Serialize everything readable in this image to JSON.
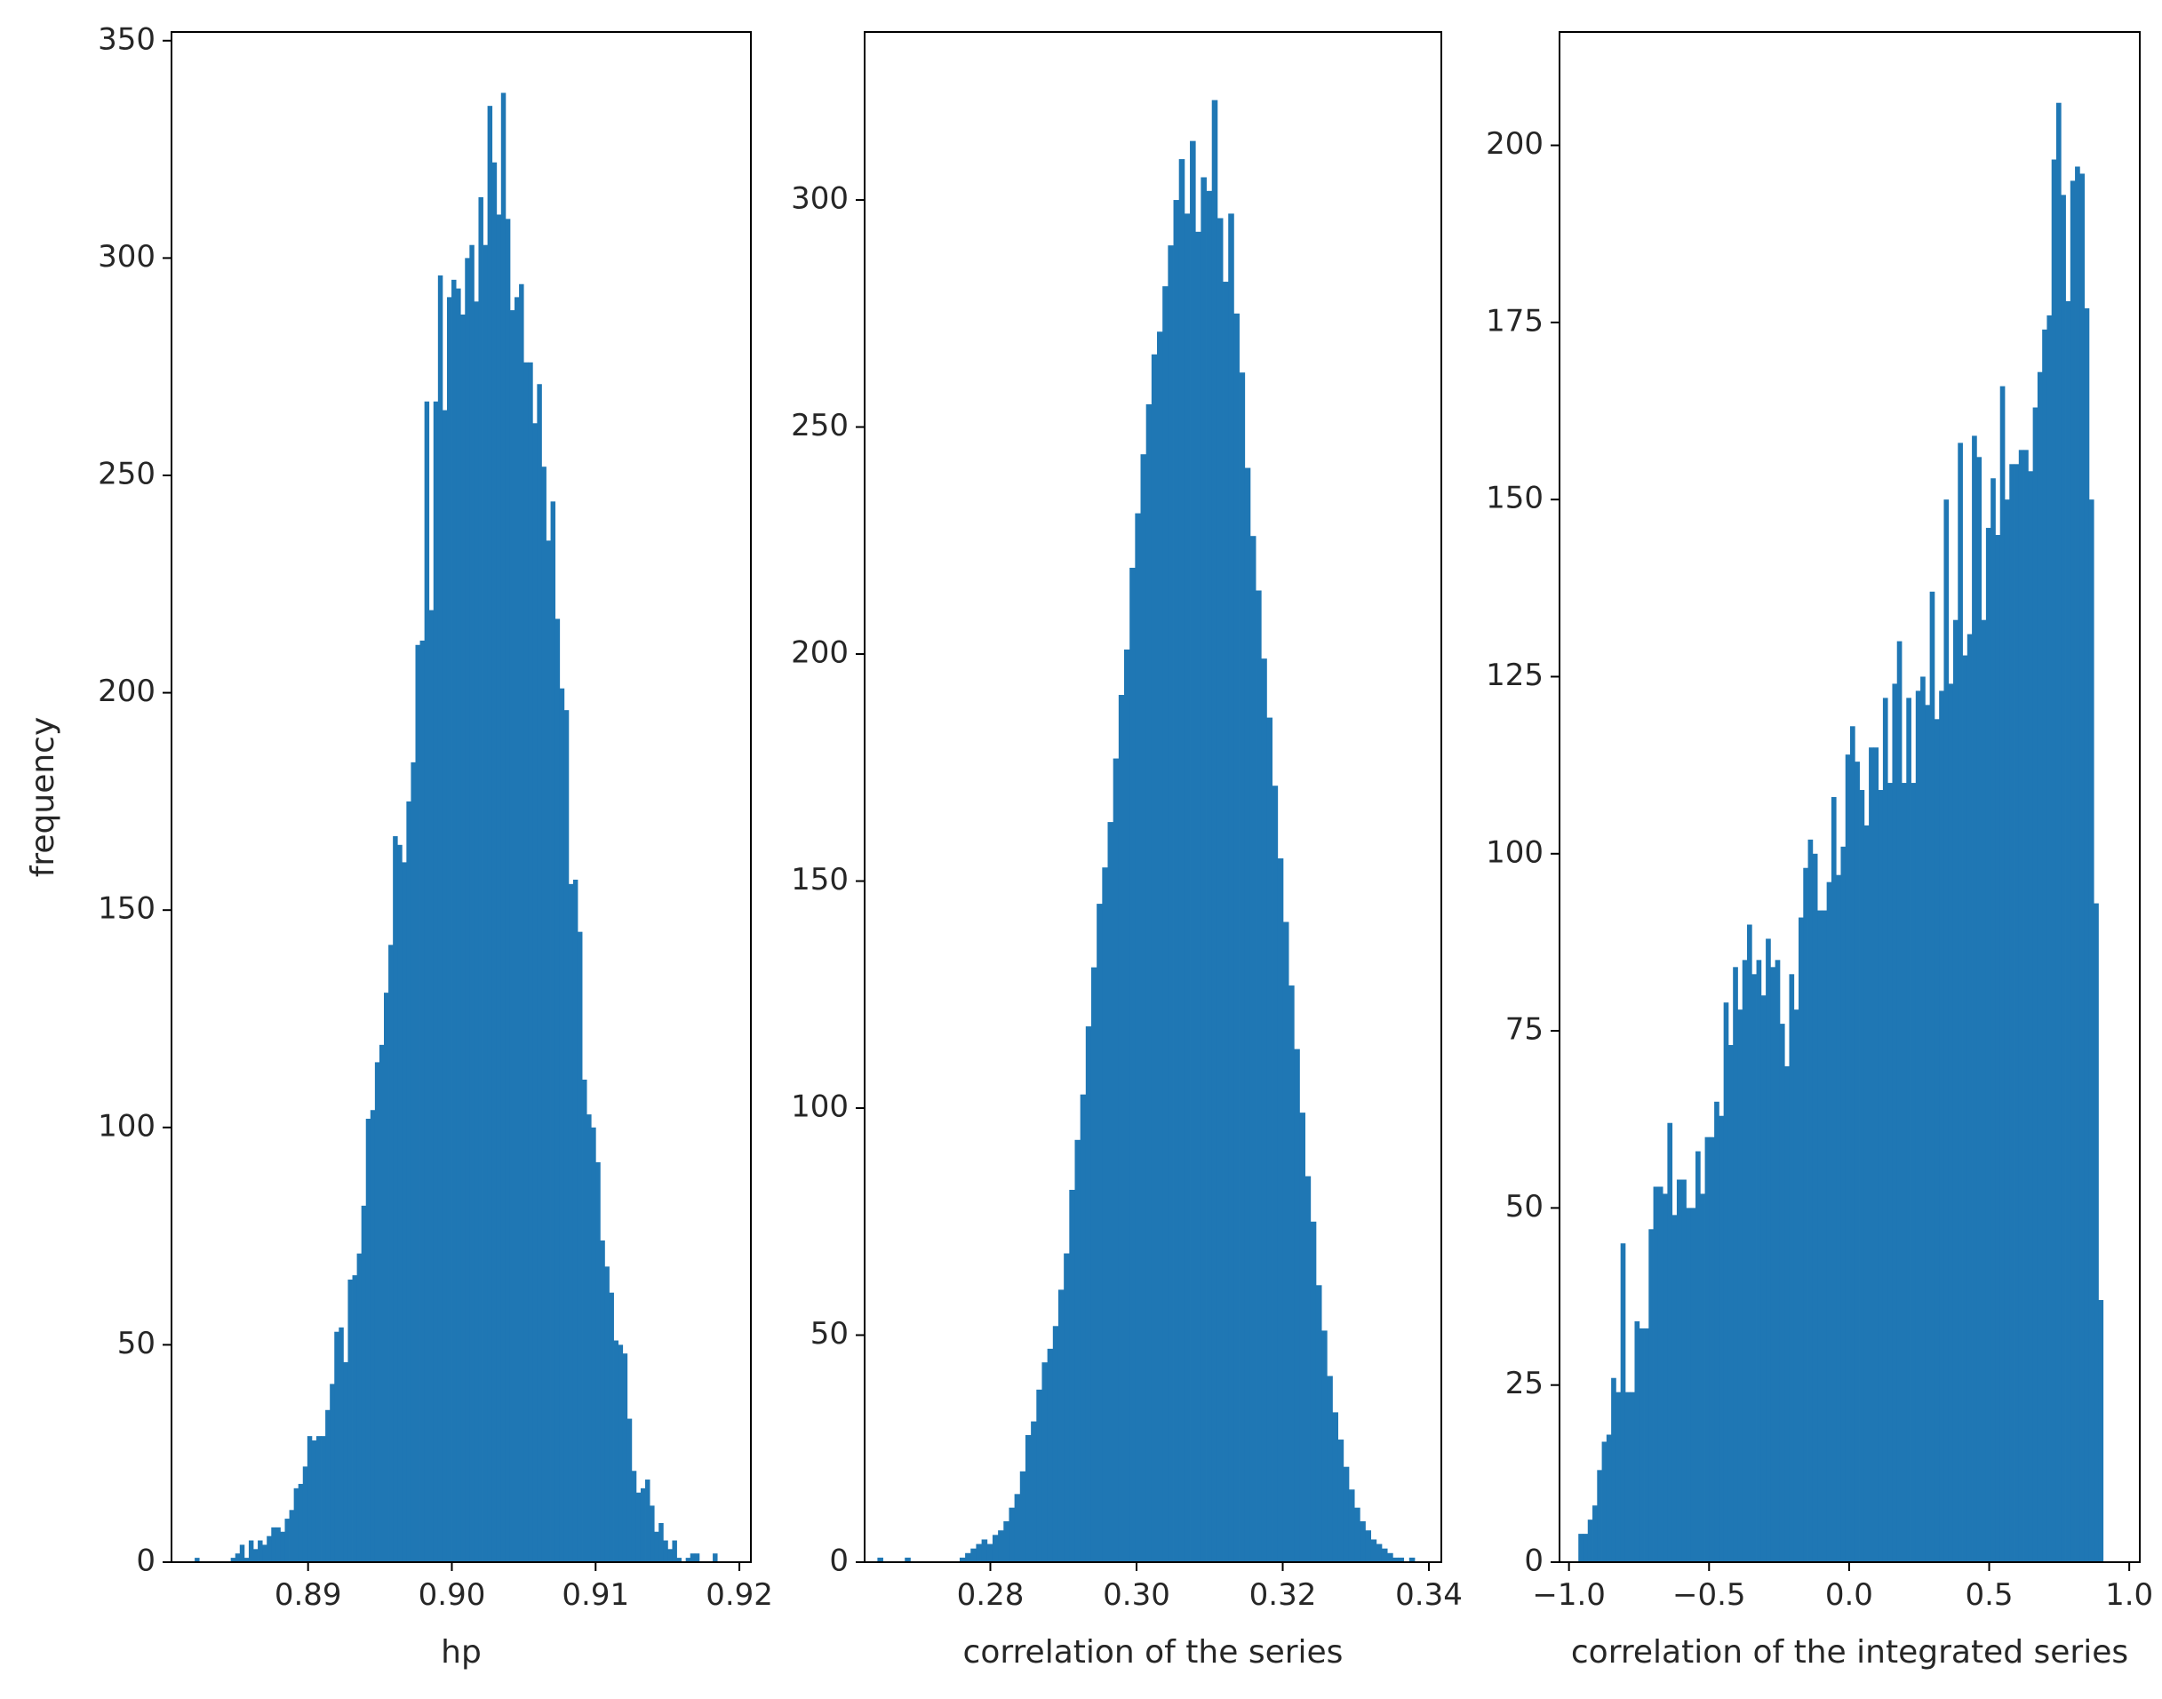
{
  "figure": {
    "background": "#ffffff",
    "bar_color": "#1f77b4",
    "frame_color": "#000000"
  },
  "chart_data": [
    {
      "type": "bar",
      "subtype": "histogram",
      "title": "",
      "xlabel": "hp",
      "ylabel": "frequency",
      "xlim": [
        0.8805,
        0.9208
      ],
      "ylim": [
        0,
        352
      ],
      "xticks": [
        0.89,
        0.9,
        0.91,
        0.92
      ],
      "xtick_labels": [
        "0.89",
        "0.90",
        "0.91",
        "0.92"
      ],
      "yticks": [
        0,
        50,
        100,
        150,
        200,
        250,
        300,
        350
      ],
      "ytick_labels": [
        "0",
        "50",
        "100",
        "150",
        "200",
        "250",
        "300",
        "350"
      ],
      "bin_start": 0.8818,
      "bin_end": 0.9194,
      "values": [
        0,
        1,
        0,
        0,
        0,
        0,
        0,
        0,
        0,
        1,
        2,
        4,
        1,
        5,
        3,
        5,
        4,
        6,
        8,
        8,
        7,
        10,
        12,
        17,
        18,
        22,
        29,
        28,
        29,
        29,
        35,
        41,
        53,
        54,
        46,
        65,
        66,
        71,
        82,
        102,
        104,
        115,
        119,
        131,
        142,
        167,
        165,
        161,
        175,
        184,
        211,
        212,
        267,
        219,
        267,
        296,
        265,
        291,
        295,
        293,
        287,
        300,
        303,
        290,
        314,
        303,
        335,
        322,
        310,
        338,
        309,
        288,
        291,
        294,
        276,
        276,
        262,
        271,
        252,
        235,
        244,
        217,
        201,
        196,
        156,
        157,
        145,
        111,
        103,
        100,
        92,
        74,
        68,
        62,
        51,
        50,
        48,
        33,
        21,
        16,
        17,
        19,
        13,
        7,
        9,
        5,
        3,
        5,
        1,
        0,
        1,
        2,
        2,
        0,
        0,
        0,
        2,
        0,
        0,
        0
      ]
    },
    {
      "type": "bar",
      "subtype": "histogram",
      "title": "",
      "xlabel": "correlation of the series",
      "ylabel": "",
      "xlim": [
        0.2628,
        0.3417
      ],
      "ylim": [
        0,
        337
      ],
      "xticks": [
        0.28,
        0.3,
        0.32,
        0.34
      ],
      "xtick_labels": [
        "0.28",
        "0.30",
        "0.32",
        "0.34"
      ],
      "yticks": [
        0,
        50,
        100,
        150,
        200,
        250,
        300
      ],
      "ytick_labels": [
        "0",
        "50",
        "100",
        "150",
        "200",
        "250",
        "300"
      ],
      "bin_start": 0.2638,
      "bin_end": 0.3388,
      "values": [
        0,
        1,
        0,
        0,
        0,
        0,
        1,
        0,
        0,
        0,
        0,
        0,
        0,
        0,
        0,
        0,
        1,
        2,
        3,
        4,
        5,
        4,
        6,
        7,
        9,
        12,
        15,
        20,
        28,
        31,
        38,
        44,
        47,
        52,
        60,
        68,
        82,
        93,
        103,
        118,
        131,
        145,
        153,
        163,
        177,
        191,
        201,
        219,
        231,
        244,
        255,
        266,
        271,
        281,
        290,
        300,
        309,
        297,
        313,
        293,
        305,
        302,
        322,
        296,
        282,
        297,
        275,
        262,
        241,
        226,
        214,
        199,
        186,
        171,
        155,
        141,
        127,
        113,
        99,
        85,
        75,
        61,
        51,
        41,
        33,
        27,
        21,
        16,
        12,
        9,
        7,
        5,
        4,
        3,
        2,
        1,
        1,
        0,
        1,
        0
      ]
    },
    {
      "type": "bar",
      "subtype": "histogram",
      "title": "",
      "xlabel": "correlation of the integrated series",
      "ylabel": "",
      "xlim": [
        -1.0338,
        1.0376
      ],
      "ylim": [
        0,
        216
      ],
      "xticks": [
        -1.0,
        -0.5,
        0.0,
        0.5,
        1.0
      ],
      "xtick_labels": [
        "−1.0",
        "−0.5",
        "0.0",
        "0.5",
        "1.0"
      ],
      "yticks": [
        0,
        25,
        50,
        75,
        100,
        125,
        150,
        175,
        200
      ],
      "ytick_labels": [
        "0",
        "25",
        "50",
        "75",
        "100",
        "125",
        "150",
        "175",
        "200"
      ],
      "bin_start": -0.9665,
      "bin_end": 0.9735,
      "values": [
        4,
        4,
        6,
        8,
        13,
        17,
        18,
        26,
        24,
        45,
        24,
        24,
        34,
        33,
        33,
        47,
        53,
        53,
        52,
        62,
        49,
        54,
        54,
        50,
        50,
        58,
        52,
        60,
        60,
        65,
        63,
        79,
        73,
        84,
        78,
        85,
        90,
        83,
        85,
        80,
        88,
        84,
        85,
        76,
        70,
        83,
        78,
        91,
        98,
        102,
        100,
        92,
        92,
        96,
        108,
        97,
        101,
        114,
        118,
        113,
        109,
        104,
        115,
        115,
        109,
        122,
        110,
        124,
        130,
        110,
        122,
        110,
        123,
        125,
        121,
        137,
        119,
        123,
        150,
        124,
        133,
        158,
        128,
        131,
        159,
        156,
        133,
        146,
        153,
        145,
        166,
        150,
        155,
        155,
        157,
        157,
        154,
        163,
        168,
        174,
        176,
        198,
        206,
        193,
        178,
        195,
        197,
        196,
        177,
        150,
        93,
        37,
        0,
        0,
        0,
        0
      ]
    }
  ]
}
